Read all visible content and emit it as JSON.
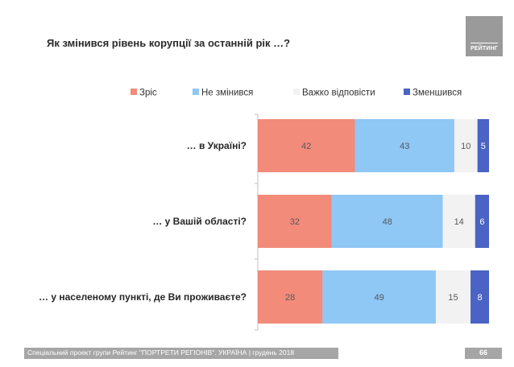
{
  "slide": {
    "title": "Як змінився рівень корупції за останній рік …?",
    "logo_text": "РЕЙТИНГ",
    "footer": "Спеціальний проект групи Рейтинг \"ПОРТРЕТИ РЕГІОНІВ\". УКРАЇНА | грудень 2018",
    "page_number": "66"
  },
  "chart_data": {
    "type": "bar",
    "orientation": "horizontal",
    "stacked": true,
    "categories": [
      "… в Україні?",
      "… у Вашій області?",
      "… у населеному пункті, де Ви проживаєте?"
    ],
    "series": [
      {
        "name": "Зріс",
        "values": [
          42,
          32,
          28
        ],
        "color": "#f28b7a"
      },
      {
        "name": "Не змінився",
        "values": [
          43,
          48,
          49
        ],
        "color": "#8fc7f5"
      },
      {
        "name": "Важко відповісти",
        "values": [
          10,
          14,
          15
        ],
        "color": "#f2f2f2"
      },
      {
        "name": "Зменшився",
        "values": [
          5,
          6,
          8
        ],
        "color": "#4a63c4"
      }
    ],
    "xlim": [
      0,
      100
    ],
    "legend_position": "top",
    "grid": false
  }
}
